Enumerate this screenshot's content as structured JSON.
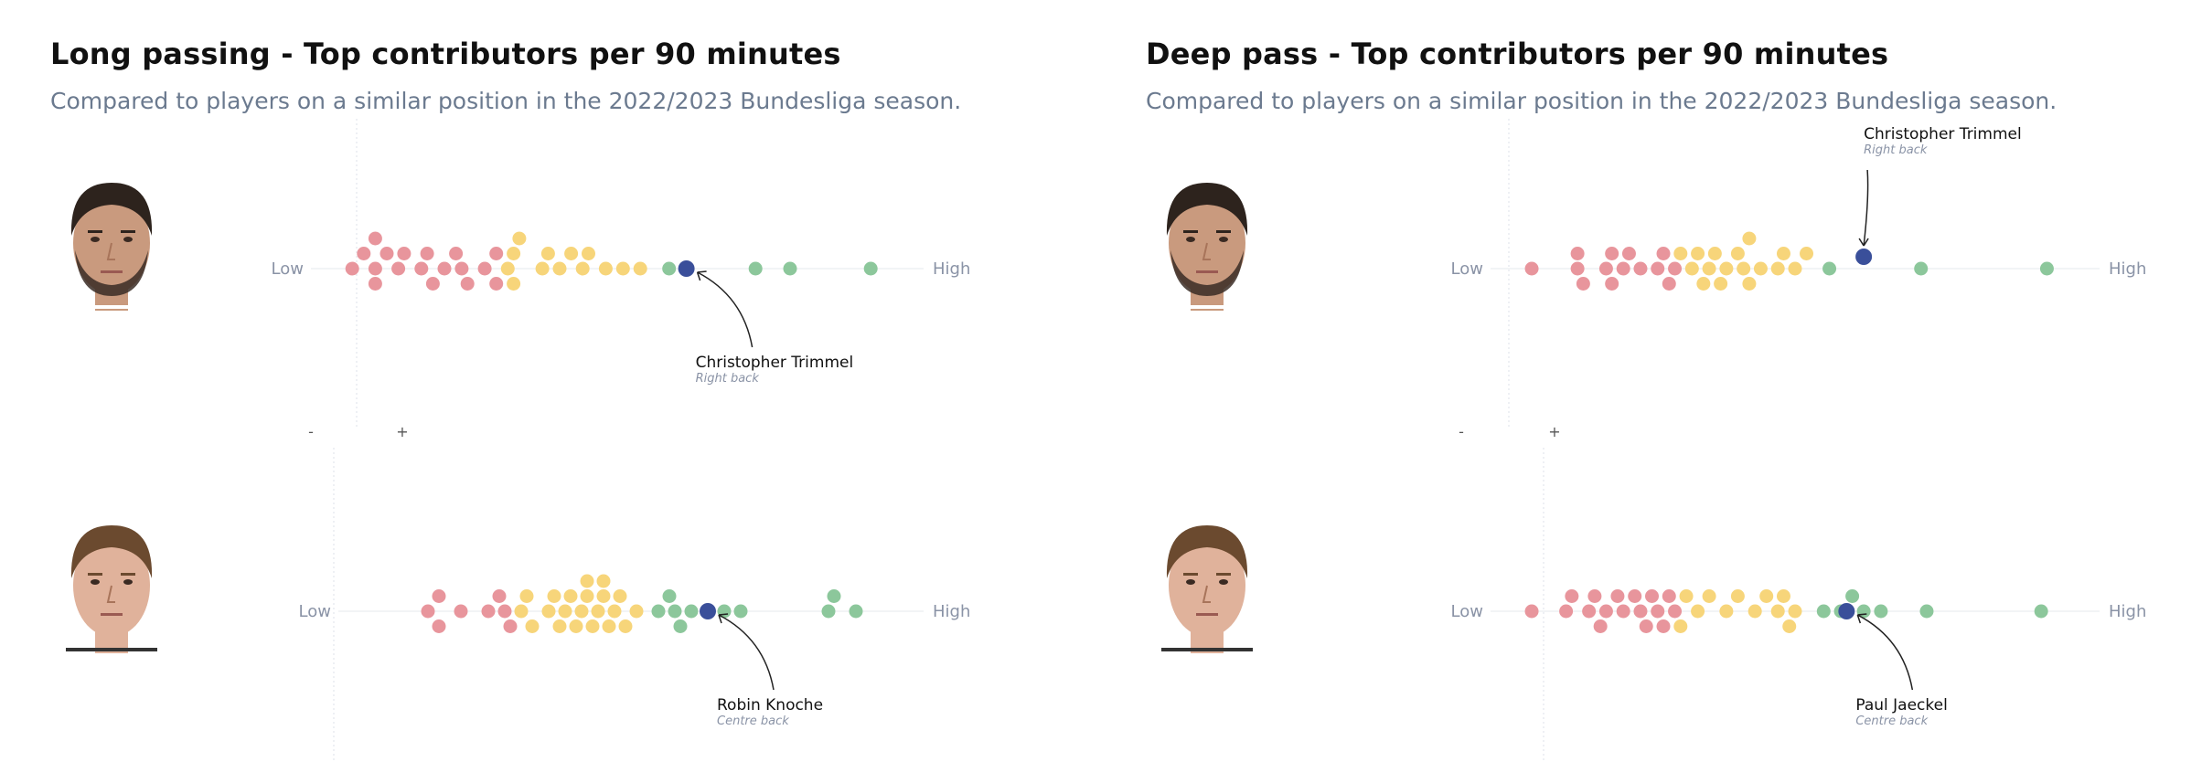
{
  "colors": {
    "low": "#e8959c",
    "mid": "#f7d57a",
    "high": "#8cc79b",
    "highlight": "#3a4f9a"
  },
  "charts": [
    {
      "title": "Long passing - Top contributors per 90 minutes",
      "subtitle": "Compared to players on a similar position in the 2022/2023 Bundesliga season.",
      "rows": [
        {
          "player": "Christopher Trimmel",
          "position": "Right back",
          "photo_icon": "player-photo-icon",
          "low_label": "Low",
          "high_label": "High",
          "chart_data": {
            "type": "scatter",
            "xlim": [
              0,
              100
            ],
            "values": [
              4,
              6,
              8,
              8,
              8,
              10,
              12,
              13,
              16,
              17,
              18,
              20,
              22,
              23,
              24,
              27,
              29,
              29,
              31,
              32,
              32,
              33,
              37,
              38,
              40,
              42,
              44,
              45,
              48,
              51,
              54,
              59,
              74,
              80,
              94
            ],
            "highlight": 62
          }
        },
        {
          "player": "Robin Knoche",
          "position": "Centre back",
          "photo_icon": "player-photo-icon",
          "low_label": "Low",
          "high_label": "High",
          "chart_data": {
            "type": "scatter",
            "xlim": [
              0,
              100
            ],
            "values": [
              13,
              15,
              15,
              19,
              24,
              26,
              27,
              28,
              30,
              31,
              32,
              35,
              36,
              37,
              38,
              39,
              40,
              41,
              42,
              42,
              43,
              44,
              45,
              45,
              46,
              47,
              48,
              49,
              51,
              55,
              57,
              58,
              59,
              61,
              64,
              67,
              70,
              86,
              87,
              91
            ],
            "highlight": 64
          }
        }
      ]
    },
    {
      "title": "Deep pass - Top contributors per 90 minutes",
      "subtitle": "Compared to players on a similar position in the 2022/2023 Bundesliga season.",
      "rows": [
        {
          "player": "Christopher Trimmel",
          "position": "Right back",
          "photo_icon": "player-photo-icon",
          "low_label": "Low",
          "high_label": "High",
          "chart_data": {
            "type": "scatter",
            "xlim": [
              0,
              100
            ],
            "values": [
              4,
              12,
              12,
              13,
              17,
              18,
              18,
              20,
              21,
              23,
              26,
              27,
              28,
              29,
              30,
              32,
              33,
              34,
              35,
              36,
              37,
              38,
              40,
              41,
              42,
              42,
              44,
              47,
              48,
              50,
              52,
              56,
              72,
              94
            ],
            "highlight": 62
          }
        },
        {
          "player": "Paul Jaeckel",
          "position": "Centre back",
          "photo_icon": "player-photo-icon",
          "low_label": "Low",
          "high_label": "High",
          "chart_data": {
            "type": "scatter",
            "xlim": [
              0,
              100
            ],
            "values": [
              4,
              10,
              11,
              14,
              15,
              16,
              17,
              19,
              20,
              22,
              23,
              24,
              25,
              26,
              27,
              28,
              29,
              30,
              31,
              33,
              35,
              38,
              40,
              43,
              45,
              47,
              48,
              49,
              50,
              55,
              58,
              60,
              62,
              65,
              73,
              93
            ],
            "highlight": 59
          }
        }
      ]
    }
  ]
}
